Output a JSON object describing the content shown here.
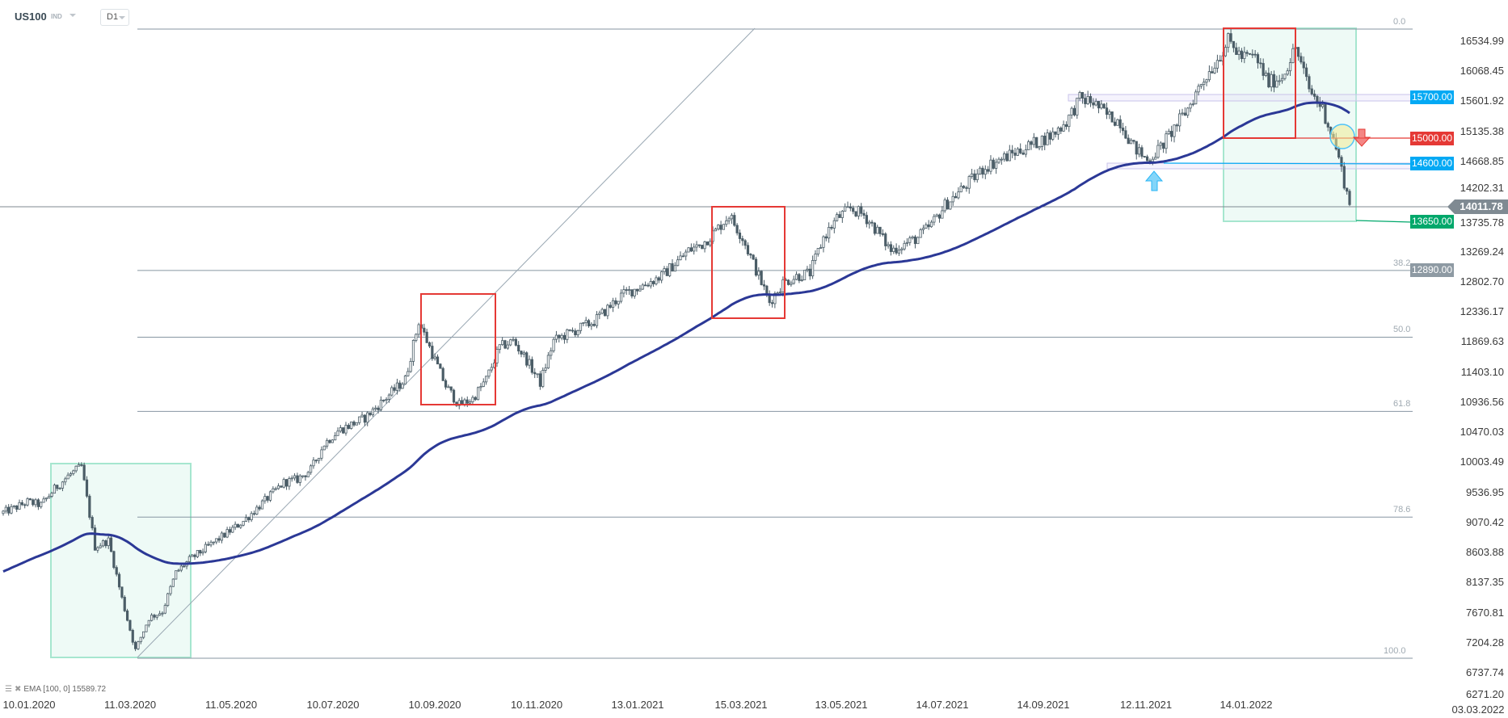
{
  "header": {
    "symbol": "US100",
    "instrument_type": "IND",
    "timeframe": "D1"
  },
  "legend": {
    "indicator": "EMA [100, 0] 15589.72",
    "icons": [
      "settings-icon",
      "remove-icon"
    ]
  },
  "colors": {
    "candle": "#4b5d67",
    "ema": "#2b3896",
    "box_green": "#a6e6cf",
    "box_red": "#e53935",
    "blue_level": "#03a9f4",
    "red_level": "#e53935",
    "green_level": "#00a86b",
    "gray_level": "#8e9aa3",
    "zone": "#c9c3ea"
  },
  "chart_data": {
    "type": "candlestick",
    "title": "",
    "y_ticks": [
      "16534.99",
      "16068.45",
      "15601.92",
      "15135.38",
      "14668.85",
      "14202.31",
      "13735.78",
      "13269.24",
      "12802.70",
      "12336.17",
      "11869.63",
      "11403.10",
      "10936.56",
      "10470.03",
      "10003.49",
      "9536.95",
      "9070.42",
      "8603.88",
      "8137.35",
      "7670.81",
      "7204.28",
      "6737.74",
      "6271.20"
    ],
    "x_ticks": [
      "10.01.2020",
      "11.03.2020",
      "11.05.2020",
      "10.07.2020",
      "10.09.2020",
      "10.11.2020",
      "13.01.2021",
      "15.03.2021",
      "13.05.2021",
      "14.07.2021",
      "14.09.2021",
      "12.11.2021",
      "14.01.2022",
      "03.03.2022"
    ],
    "weekly_close": [
      9300,
      9400,
      9350,
      9600,
      9800,
      9950,
      8700,
      8800,
      7900,
      7100,
      7600,
      7700,
      8300,
      8500,
      8650,
      8800,
      8950,
      9100,
      9300,
      9500,
      9700,
      9750,
      9900,
      10300,
      10500,
      10600,
      10700,
      10900,
      11100,
      11300,
      12200,
      11700,
      11200,
      10900,
      11000,
      11300,
      11800,
      11900,
      11600,
      11250,
      11900,
      12000,
      12100,
      12200,
      12400,
      12600,
      12700,
      12800,
      12900,
      13100,
      13300,
      13400,
      13600,
      13850,
      13500,
      13000,
      12500,
      12800,
      12900,
      12950,
      13500,
      13800,
      13950,
      13850,
      13600,
      13300,
      13400,
      13500,
      13700,
      14000,
      14200,
      14400,
      14600,
      14700,
      14800,
      14900,
      15000,
      15100,
      15300,
      15650,
      15600,
      15400,
      15300,
      14900,
      14700,
      14900,
      15200,
      15500,
      15900,
      16200,
      16550,
      16300,
      16300,
      15900,
      16000,
      16450,
      15800,
      15500,
      14900,
      14011.78
    ],
    "current_price": "14011.78",
    "fib_levels": [
      {
        "label": "0.0",
        "value": 16735
      },
      {
        "label": "38.2",
        "value": 12890
      },
      {
        "label": "50.0",
        "value": 11855
      },
      {
        "label": "61.8",
        "value": 10703
      },
      {
        "label": "78.6",
        "value": 9063
      },
      {
        "label": "100.0",
        "value": 6974
      }
    ],
    "levels": [
      {
        "label": "15700.00",
        "value": 15700,
        "color": "#03a9f4"
      },
      {
        "label": "15000.00",
        "value": 15000,
        "color": "#e53935"
      },
      {
        "label": "14600.00",
        "value": 14600,
        "color": "#03a9f4"
      },
      {
        "label": "13650.00",
        "value": 13650,
        "color": "#00a86b"
      },
      {
        "label": "12890.00",
        "value": 12890,
        "color": "#8e9aa3"
      }
    ],
    "indicator": {
      "name": "EMA",
      "period": 100,
      "last": 15589.72
    }
  }
}
